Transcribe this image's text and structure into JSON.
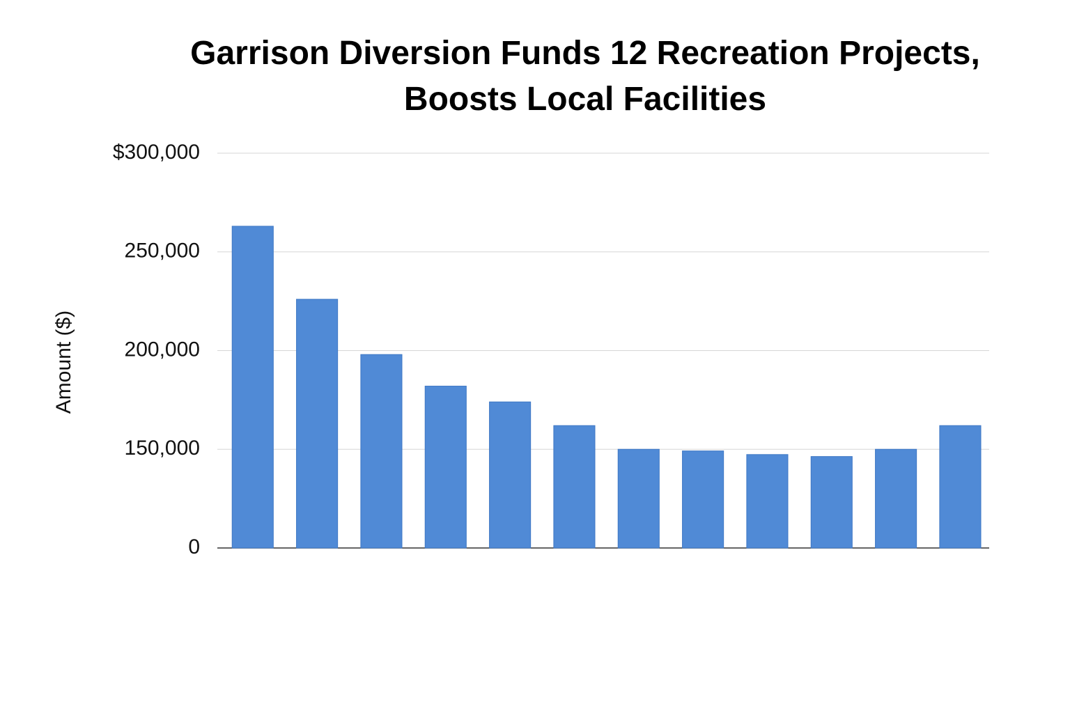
{
  "chart_data": {
    "type": "bar",
    "title": "Garrison Diversion Funds 12 Recreation Projects, Boosts Local Facilities",
    "y_label": "Amount ($)",
    "categories": [
      null,
      null,
      null,
      null,
      null,
      null,
      null,
      null,
      null,
      null,
      null,
      null
    ],
    "values": [
      263000,
      226000,
      198000,
      182000,
      174000,
      162000,
      150000,
      147500,
      142000,
      139000,
      150000,
      162000
    ],
    "color": "#508ad6",
    "ylim": [
      0,
      300000
    ],
    "y_scale": "piecewise",
    "yticks": [
      0,
      {
        "value": 150000,
        "label": "150,000"
      },
      {
        "value": 200000,
        "label": "200,000"
      },
      {
        "value": 250000,
        "label": "250,000"
      },
      {
        "value": 300000,
        "label": "$300,000"
      }
    ],
    "grid": true
  }
}
